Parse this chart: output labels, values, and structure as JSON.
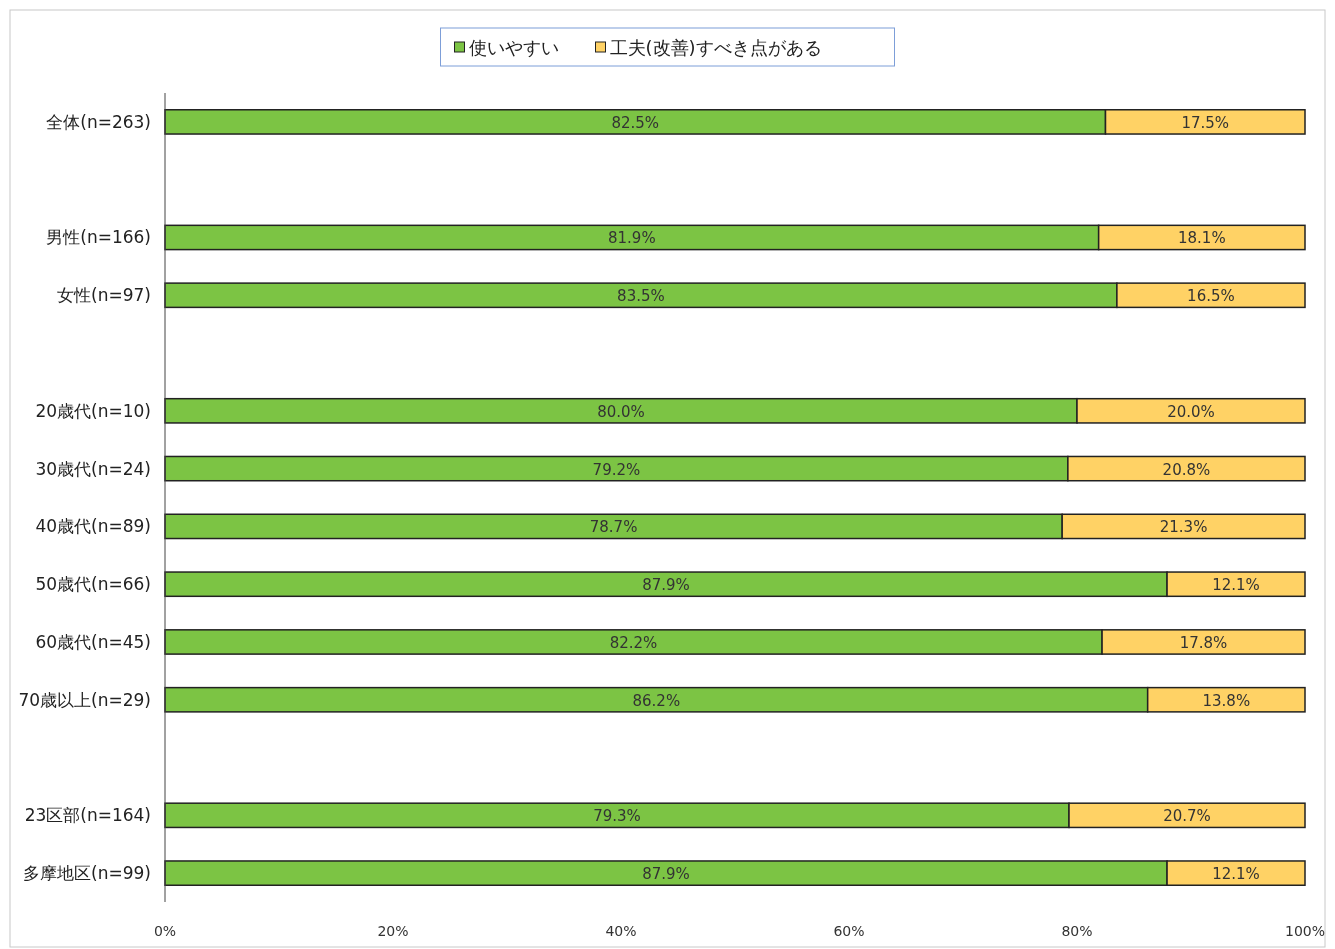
{
  "chart_data": {
    "type": "bar",
    "orientation": "horizontal",
    "stacked": true,
    "legend": "top",
    "categories": [
      "全体(n=263)",
      null,
      "男性(n=166)",
      "女性(n=97)",
      null,
      "20歳代(n=10)",
      "30歳代(n=24)",
      "40歳代(n=89)",
      "50歳代(n=66)",
      "60歳代(n=45)",
      "70歳以上(n=29)",
      null,
      "23区部(n=164)",
      "多摩地区(n=99)"
    ],
    "series": [
      {
        "name": "使いやすい",
        "color": "#7cc444",
        "values": [
          82.5,
          null,
          81.9,
          83.5,
          null,
          80.0,
          79.2,
          78.7,
          87.9,
          82.2,
          86.2,
          null,
          79.3,
          87.9
        ],
        "value_labels": [
          "82.5%",
          null,
          "81.9%",
          "83.5%",
          null,
          "80.0%",
          "79.2%",
          "78.7%",
          "87.9%",
          "82.2%",
          "86.2%",
          null,
          "79.3%",
          "87.9%"
        ]
      },
      {
        "name": "工夫(改善)すべき点がある",
        "color": "#ffd265",
        "values": [
          17.5,
          null,
          18.1,
          16.5,
          null,
          20.0,
          20.8,
          21.3,
          12.1,
          17.8,
          13.8,
          null,
          20.7,
          12.1
        ],
        "value_labels": [
          "17.5%",
          null,
          "18.1%",
          "16.5%",
          null,
          "20.0%",
          "20.8%",
          "21.3%",
          "12.1%",
          "17.8%",
          "13.8%",
          null,
          "20.7%",
          "12.1%"
        ]
      }
    ],
    "xlim": [
      0,
      100
    ],
    "xticks": [
      {
        "value": 0,
        "label": "0%"
      },
      {
        "value": 20,
        "label": "20%"
      },
      {
        "value": 40,
        "label": "40%"
      },
      {
        "value": 60,
        "label": "60%"
      },
      {
        "value": 80,
        "label": "80%"
      },
      {
        "value": 100,
        "label": "100%"
      }
    ]
  }
}
